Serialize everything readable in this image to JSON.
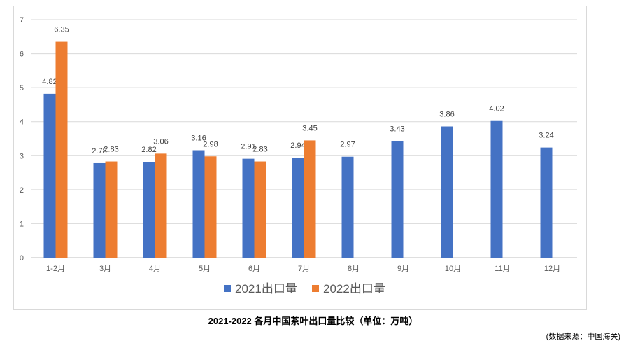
{
  "chart_data": {
    "type": "bar",
    "categories": [
      "1-2月",
      "3月",
      "4月",
      "5月",
      "6月",
      "7月",
      "8月",
      "9月",
      "10月",
      "11月",
      "12月"
    ],
    "series": [
      {
        "name": "2021出口量",
        "color": "#4472c4",
        "values": [
          4.82,
          2.78,
          2.82,
          3.16,
          2.91,
          2.94,
          2.97,
          3.43,
          3.86,
          4.02,
          3.24
        ]
      },
      {
        "name": "2022出口量",
        "color": "#ed7d31",
        "values": [
          6.35,
          2.83,
          3.06,
          2.98,
          2.83,
          3.45,
          null,
          null,
          null,
          null,
          null
        ]
      }
    ],
    "ylim": [
      0,
      7
    ],
    "yticks": [
      0,
      1,
      2,
      3,
      4,
      5,
      6,
      7
    ],
    "grid": true,
    "legend_position": "bottom",
    "xlabel": "",
    "ylabel": "",
    "title": "2021-2022 各月中国茶叶出口量比较（单位：万吨）"
  },
  "caption": "2021-2022 各月中国茶叶出口量比较（单位：万吨）",
  "source": "(数据来源：中国海关)"
}
